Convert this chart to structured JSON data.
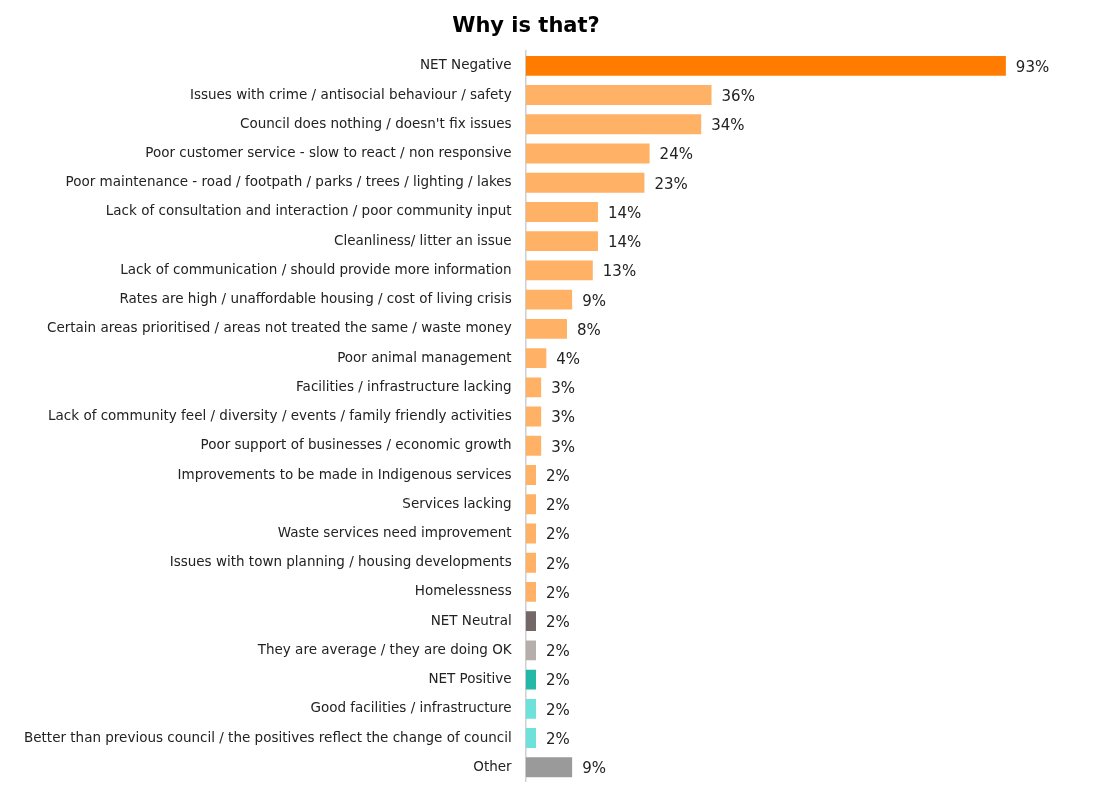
{
  "chart_data": {
    "type": "bar",
    "orientation": "horizontal",
    "title": "Why is that?",
    "categories": [
      "NET Negative",
      "Issues with crime / antisocial behaviour / safety",
      "Council does nothing / doesn't fix issues",
      "Poor customer service - slow to react / non responsive",
      "Poor maintenance - road / footpath / parks / trees / lighting / lakes",
      "Lack of consultation and interaction / poor community input",
      "Cleanliness/ litter an issue",
      "Lack of communication / should provide more information",
      "Rates are high / unaffordable housing / cost of living crisis",
      "Certain areas prioritised / areas not treated the same / waste money",
      "Poor animal management",
      "Facilities / infrastructure lacking",
      "Lack of community feel / diversity / events / family friendly activities",
      "Poor support of businesses / economic growth",
      "Improvements to be made in Indigenous services",
      "Services lacking",
      "Waste services need improvement",
      "Issues with town planning / housing developments",
      "Homelessness",
      "NET Neutral",
      "They are average / they are doing OK",
      "NET Positive",
      "Good facilities / infrastructure",
      "Better than previous council / the positives reflect the change of council",
      "Other"
    ],
    "values": [
      93,
      36,
      34,
      24,
      23,
      14,
      14,
      13,
      9,
      8,
      4,
      3,
      3,
      3,
      2,
      2,
      2,
      2,
      2,
      2,
      2,
      2,
      2,
      2,
      9
    ],
    "value_labels": [
      "93%",
      "36%",
      "34%",
      "24%",
      "23%",
      "14%",
      "14%",
      "13%",
      "9%",
      "8%",
      "4%",
      "3%",
      "3%",
      "3%",
      "2%",
      "2%",
      "2%",
      "2%",
      "2%",
      "2%",
      "2%",
      "2%",
      "2%",
      "2%",
      "9%"
    ],
    "colors": [
      "#ff7c00",
      "#ffb266",
      "#ffb266",
      "#ffb266",
      "#ffb266",
      "#ffb266",
      "#ffb266",
      "#ffb266",
      "#ffb266",
      "#ffb266",
      "#ffb266",
      "#ffb266",
      "#ffb266",
      "#ffb266",
      "#ffb266",
      "#ffb266",
      "#ffb266",
      "#ffb266",
      "#ffb266",
      "#736767",
      "#b5aeab",
      "#25b8a8",
      "#6ee2da",
      "#6ee2da",
      "#9a9a9a"
    ],
    "tick_labels": "y",
    "grid": false,
    "legend": false
  }
}
